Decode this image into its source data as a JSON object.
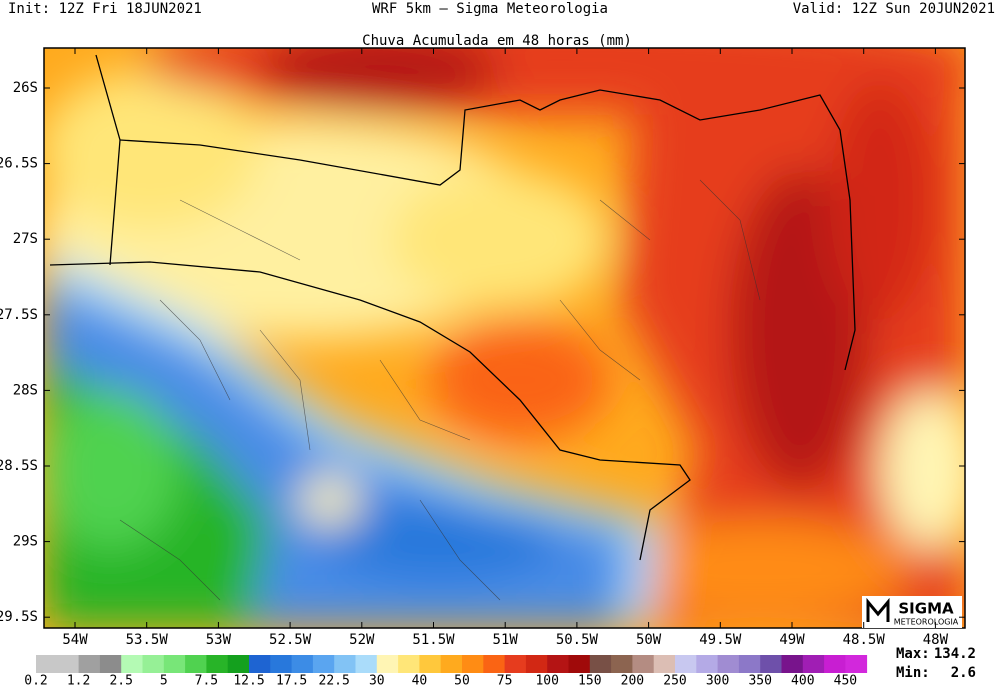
{
  "header": {
    "init": "Init: 12Z Fri 18JUN2021",
    "model": "WRF 5km – Sigma Meteorologia",
    "valid": "Valid: 12Z Sun 20JUN2021",
    "title": "Chuva Acumulada em 48 horas (mm)"
  },
  "map": {
    "lat_labels": [
      "26S",
      "26.5S",
      "27S",
      "27.5S",
      "28S",
      "28.5S",
      "29S",
      "29.5S"
    ],
    "lon_labels": [
      "54W",
      "53.5W",
      "53W",
      "52.5W",
      "52W",
      "51.5W",
      "51W",
      "50.5W",
      "50W",
      "49.5W",
      "49W",
      "48.5W",
      "48W"
    ]
  },
  "logo": {
    "name": "SIGMA",
    "sub": "METEOROLOGIA"
  },
  "colorbar": {
    "colors": [
      "#c8c8c8",
      "#c8c8c8",
      "#a0a0a0",
      "#8c8c8c",
      "#b4fab4",
      "#96f096",
      "#78e678",
      "#50d250",
      "#28b428",
      "#14a01e",
      "#1e64d2",
      "#2878dc",
      "#3c8ce6",
      "#5aa5f0",
      "#82c3f5",
      "#aadcfa",
      "#fff5b4",
      "#ffe678",
      "#ffc83c",
      "#ffaa1e",
      "#ff8c14",
      "#fa6414",
      "#e63c1e",
      "#d22814",
      "#b41414",
      "#a00a0a",
      "#785046",
      "#8c6450",
      "#b48c82",
      "#dcbeb4",
      "#c8c8f0",
      "#b4aae6",
      "#a08cd2",
      "#8c78c8",
      "#6e50aa",
      "#78148c",
      "#a01eb4",
      "#c81ed2",
      "#d228dc"
    ],
    "labels": [
      "0.2",
      "1.2",
      "2.5",
      "5",
      "7.5",
      "12.5",
      "17.5",
      "22.5",
      "30",
      "40",
      "50",
      "75",
      "100",
      "150",
      "200",
      "250",
      "300",
      "350",
      "400",
      "450"
    ]
  },
  "stats": {
    "max_label": "Max:",
    "max": "134.2",
    "min_label": "Min:",
    "min": "2.6"
  }
}
